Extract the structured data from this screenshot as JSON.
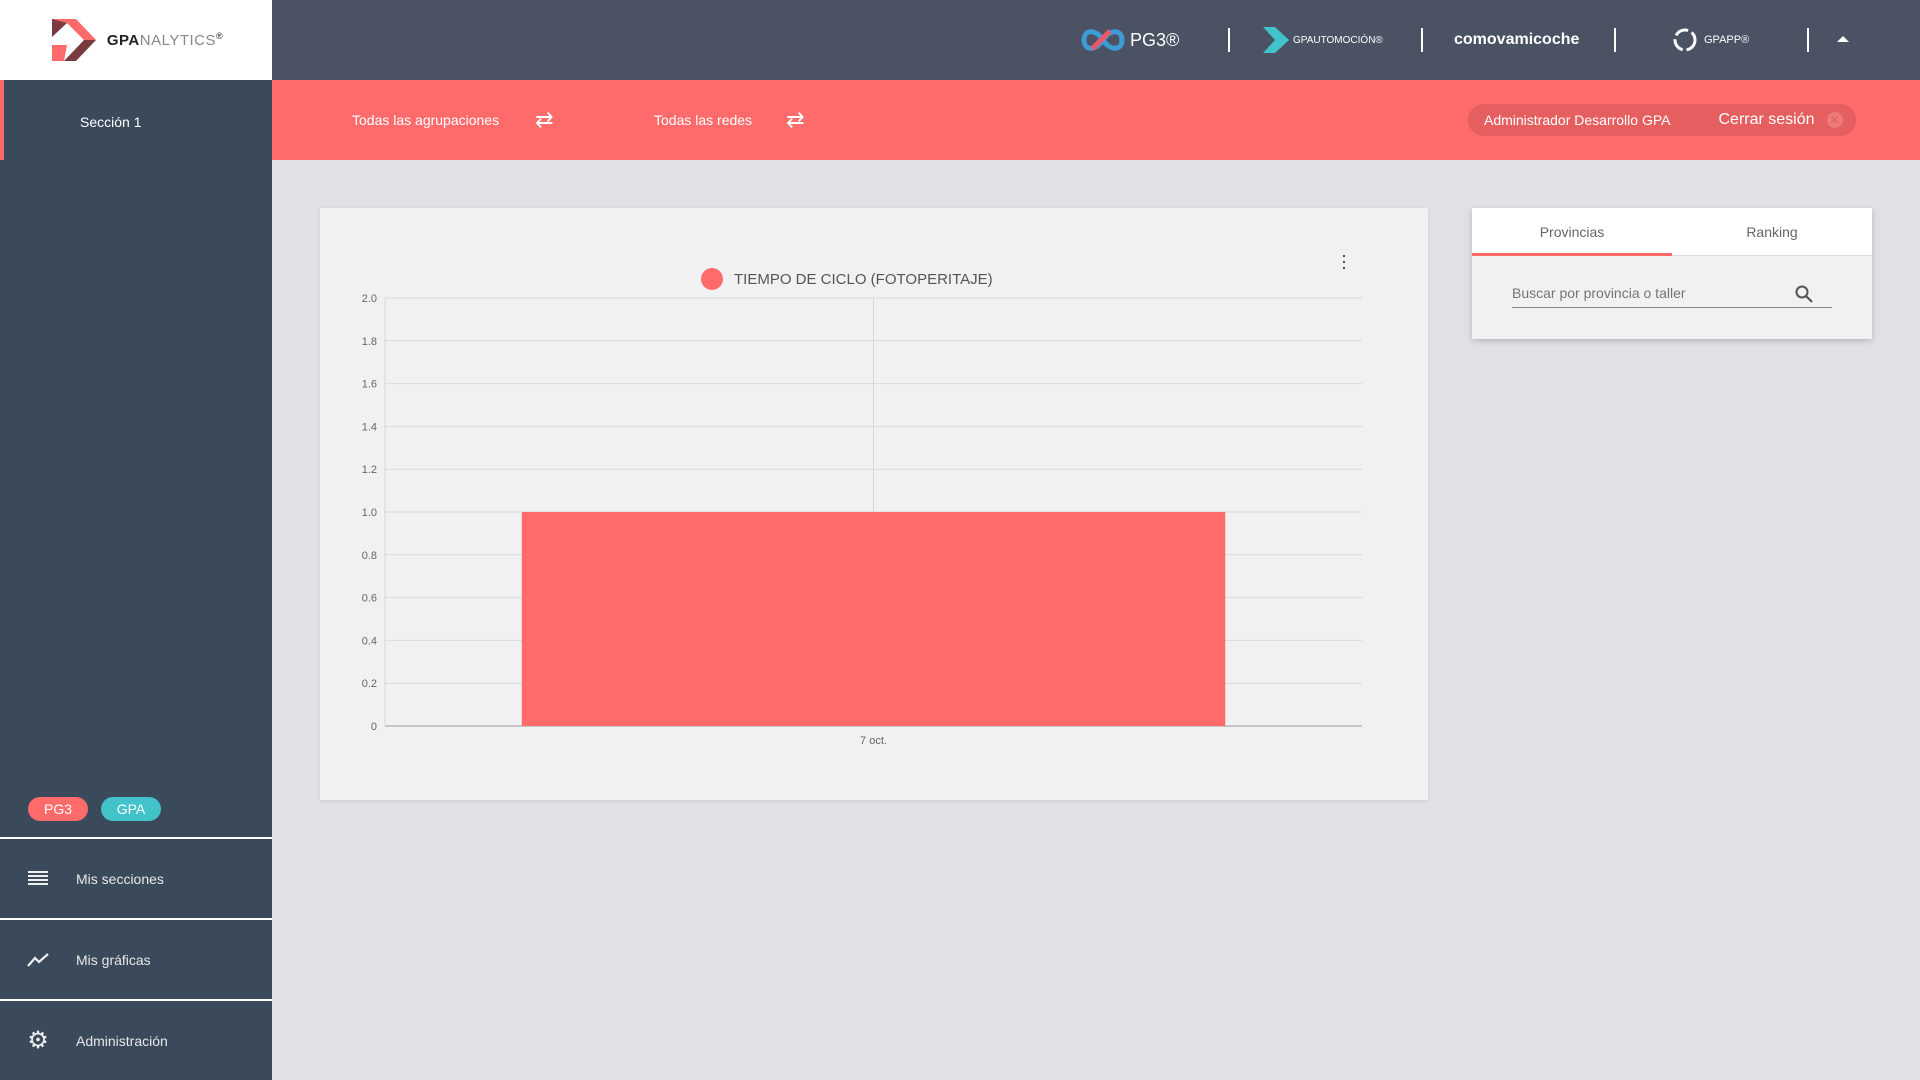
{
  "brand": {
    "logo_text_bold": "GPA",
    "logo_text_light": "NALYTICS",
    "reg": "®"
  },
  "sidebar": {
    "section": "Sección 1",
    "badges": [
      {
        "label": "PG3",
        "color": "#ff6b6b"
      },
      {
        "label": "GPA",
        "color": "#42c3c9"
      }
    ],
    "items": [
      {
        "label": "Mis secciones",
        "icon": "list-icon"
      },
      {
        "label": "Mis gráficas",
        "icon": "trending-icon"
      },
      {
        "label": "Administración",
        "icon": "gear-icon"
      }
    ]
  },
  "topbar": {
    "apps": [
      "PG3®",
      "GPAUTOMOCIÓN®",
      "comovamicoche",
      "GPAPP®"
    ]
  },
  "filters": [
    {
      "label": "Todas las agrupaciones",
      "icon": "swap-icon"
    },
    {
      "label": "Todas las redes",
      "icon": "swap-icon"
    }
  ],
  "user": {
    "name": "Administrador Desarrollo GPA",
    "logout": "Cerrar sesión"
  },
  "panel": {
    "tabs": [
      "Provincias",
      "Ranking"
    ],
    "active_tab": "Provincias",
    "search_placeholder": "Buscar por provincia o taller"
  },
  "colors": {
    "accent": "#ff6b6b",
    "sidebar": "#3a4a5b",
    "topbar": "#4a5264",
    "teal": "#42c3c9"
  },
  "chart_data": {
    "type": "bar",
    "categories": [
      "7 oct."
    ],
    "series": [
      {
        "name": "TIEMPO DE CICLO (FOTOPERITAJE)",
        "values": [
          1.0
        ],
        "color": "#ff6b6b"
      }
    ],
    "ylim": [
      0,
      2.0
    ],
    "yticks": [
      "0",
      "0.2",
      "0.4",
      "0.6",
      "0.8",
      "1.0",
      "1.2",
      "1.4",
      "1.6",
      "1.8",
      "2.0"
    ],
    "grid": true,
    "legend": "top"
  }
}
